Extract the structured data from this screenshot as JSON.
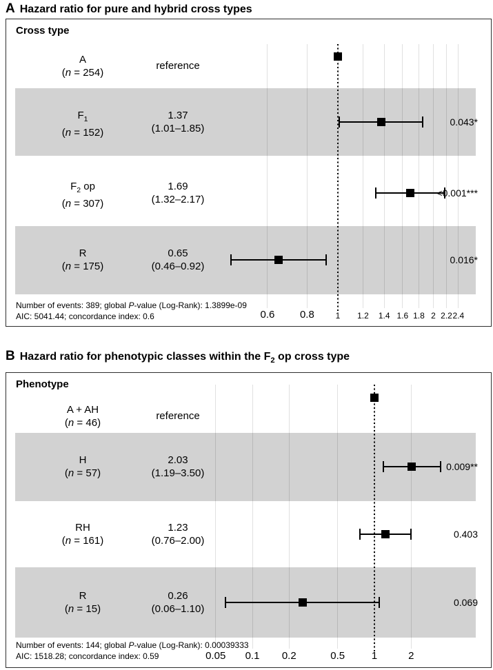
{
  "figure": {
    "background": "#ffffff",
    "n_format": {
      "open": "(",
      "var": "n",
      "eq": " = ",
      "close": ")"
    },
    "panels": [
      {
        "panel_letter": "A",
        "title": {
          "pre": "Hazard ratio for pure and hybrid cross types",
          "sub": "",
          "post": ""
        },
        "column_header": "Cross type",
        "footer": {
          "line1_pre": "Number of events: 389; global ",
          "line1_italic": "P",
          "line1_post": "-value (Log-Rank): 1.3899e-09",
          "line2": "AIC: 5041.44; concordance index: 0.6"
        }
      },
      {
        "panel_letter": "B",
        "title": {
          "pre": "Hazard ratio for phenotypic classes within the F",
          "sub": "2",
          "post": " op cross type"
        },
        "column_header": "Phenotype",
        "footer": {
          "line1_pre": "Number of events: 144; global ",
          "line1_italic": "P",
          "line1_post": "-value (Log-Rank): 0.00039333",
          "line2": "AIC: 1518.28; concordance index: 0.59"
        }
      }
    ]
  },
  "colors": {
    "band": "#d2d2d2",
    "marker": "#000000",
    "gridline": "rgba(0,0,0,0.12)",
    "panel_border": "#2e2e2e"
  },
  "chart_data": [
    {
      "type": "forest",
      "panel": "A",
      "title": "Hazard ratio for pure and hybrid cross types",
      "group_column": "Cross type",
      "x_scale": "log",
      "reference_line": 1,
      "x_ticks": [
        0.6,
        0.8,
        1,
        1.2,
        1.4,
        1.6,
        1.8,
        2,
        2.2,
        2.4
      ],
      "x_tick_labels": [
        "0.6",
        "0.8",
        "1",
        "1.2",
        "1.4",
        "1.6",
        "1.8",
        "2",
        "2.2",
        "2.4"
      ],
      "rows": [
        {
          "label_parts": [
            "A",
            "",
            ""
          ],
          "n": 254,
          "estimate_label": "reference",
          "ci_label": "",
          "hr": 1.0,
          "ci_low": null,
          "ci_high": null,
          "p_label": "",
          "reference": true,
          "shaded": false
        },
        {
          "label_parts": [
            "F",
            "1",
            ""
          ],
          "n": 152,
          "estimate_label": "1.37",
          "ci_label": "(1.01–1.85)",
          "hr": 1.37,
          "ci_low": 1.01,
          "ci_high": 1.85,
          "p_label": "0.043*",
          "reference": false,
          "shaded": true
        },
        {
          "label_parts": [
            "F",
            "2",
            " op"
          ],
          "n": 307,
          "estimate_label": "1.69",
          "ci_label": "(1.32–2.17)",
          "hr": 1.69,
          "ci_low": 1.32,
          "ci_high": 2.17,
          "p_label": "<0.001***",
          "reference": false,
          "shaded": false
        },
        {
          "label_parts": [
            "R",
            "",
            ""
          ],
          "n": 175,
          "estimate_label": "0.65",
          "ci_label": "(0.46–0.92)",
          "hr": 0.65,
          "ci_low": 0.46,
          "ci_high": 0.92,
          "p_label": "0.016*",
          "reference": false,
          "shaded": true
        }
      ],
      "number_of_events": 389,
      "global_p_value_logrank": "1.3899e-09",
      "aic": "5041.44",
      "concordance_index": "0.6"
    },
    {
      "type": "forest",
      "panel": "B",
      "title": "Hazard ratio for phenotypic classes within the F2 op cross type",
      "group_column": "Phenotype",
      "x_scale": "log",
      "reference_line": 1,
      "x_ticks": [
        0.05,
        0.1,
        0.2,
        0.5,
        1,
        2
      ],
      "x_tick_labels": [
        "0.05",
        "0.1",
        "0.2",
        "0.5",
        "1",
        "2"
      ],
      "rows": [
        {
          "label_parts": [
            "A + AH",
            "",
            ""
          ],
          "n": 46,
          "estimate_label": "reference",
          "ci_label": "",
          "hr": 1.0,
          "ci_low": null,
          "ci_high": null,
          "p_label": "",
          "reference": true,
          "shaded": false
        },
        {
          "label_parts": [
            "H",
            "",
            ""
          ],
          "n": 57,
          "estimate_label": "2.03",
          "ci_label": "(1.19–3.50)",
          "hr": 2.03,
          "ci_low": 1.19,
          "ci_high": 3.5,
          "p_label": "0.009**",
          "reference": false,
          "shaded": true
        },
        {
          "label_parts": [
            "RH",
            "",
            ""
          ],
          "n": 161,
          "estimate_label": "1.23",
          "ci_label": "(0.76–2.00)",
          "hr": 1.23,
          "ci_low": 0.76,
          "ci_high": 2.0,
          "p_label": "0.403",
          "reference": false,
          "shaded": false
        },
        {
          "label_parts": [
            "R",
            "",
            ""
          ],
          "n": 15,
          "estimate_label": "0.26",
          "ci_label": "(0.06–1.10)",
          "hr": 0.26,
          "ci_low": 0.06,
          "ci_high": 1.1,
          "p_label": "0.069",
          "reference": false,
          "shaded": true
        }
      ],
      "number_of_events": 144,
      "global_p_value_logrank": "0.00039333",
      "aic": "1518.28",
      "concordance_index": "0.59"
    }
  ]
}
